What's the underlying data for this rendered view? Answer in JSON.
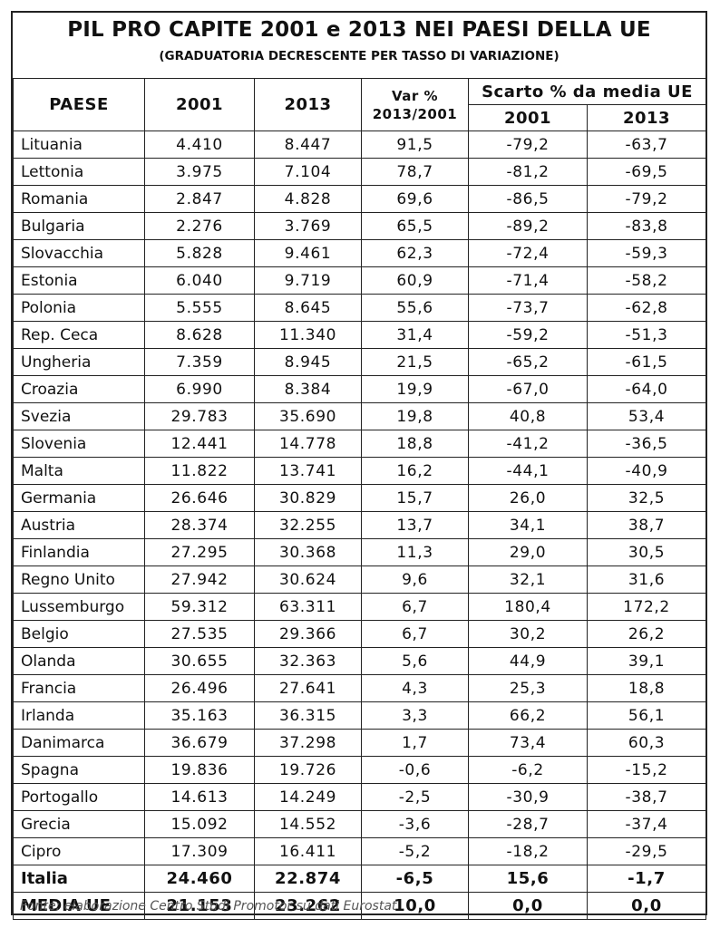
{
  "title": "PIL PRO CAPITE 2001 e 2013 NEI PAESI DELLA UE",
  "subtitle": "(GRADUATORIA DECRESCENTE PER TASSO DI VARIAZIONE)",
  "headers": {
    "paese": "PAESE",
    "y2001": "2001",
    "y2013": "2013",
    "var_line1": "Var %",
    "var_line2": "2013/2001",
    "scarto": "Scarto % da media UE",
    "scarto_2001": "2001",
    "scarto_2013": "2013"
  },
  "rows": [
    [
      "Lituania",
      "4.410",
      "8.447",
      "91,5",
      "-79,2",
      "-63,7"
    ],
    [
      "Lettonia",
      "3.975",
      "7.104",
      "78,7",
      "-81,2",
      "-69,5"
    ],
    [
      "Romania",
      "2.847",
      "4.828",
      "69,6",
      "-86,5",
      "-79,2"
    ],
    [
      "Bulgaria",
      "2.276",
      "3.769",
      "65,5",
      "-89,2",
      "-83,8"
    ],
    [
      "Slovacchia",
      "5.828",
      "9.461",
      "62,3",
      "-72,4",
      "-59,3"
    ],
    [
      "Estonia",
      "6.040",
      "9.719",
      "60,9",
      "-71,4",
      "-58,2"
    ],
    [
      "Polonia",
      "5.555",
      "8.645",
      "55,6",
      "-73,7",
      "-62,8"
    ],
    [
      "Rep. Ceca",
      "8.628",
      "11.340",
      "31,4",
      "-59,2",
      "-51,3"
    ],
    [
      "Ungheria",
      "7.359",
      "8.945",
      "21,5",
      "-65,2",
      "-61,5"
    ],
    [
      "Croazia",
      "6.990",
      "8.384",
      "19,9",
      "-67,0",
      "-64,0"
    ],
    [
      "Svezia",
      "29.783",
      "35.690",
      "19,8",
      "40,8",
      "53,4"
    ],
    [
      "Slovenia",
      "12.441",
      "14.778",
      "18,8",
      "-41,2",
      "-36,5"
    ],
    [
      "Malta",
      "11.822",
      "13.741",
      "16,2",
      "-44,1",
      "-40,9"
    ],
    [
      "Germania",
      "26.646",
      "30.829",
      "15,7",
      "26,0",
      "32,5"
    ],
    [
      "Austria",
      "28.374",
      "32.255",
      "13,7",
      "34,1",
      "38,7"
    ],
    [
      "Finlandia",
      "27.295",
      "30.368",
      "11,3",
      "29,0",
      "30,5"
    ],
    [
      "Regno Unito",
      "27.942",
      "30.624",
      "9,6",
      "32,1",
      "31,6"
    ],
    [
      "Lussemburgo",
      "59.312",
      "63.311",
      "6,7",
      "180,4",
      "172,2"
    ],
    [
      "Belgio",
      "27.535",
      "29.366",
      "6,7",
      "30,2",
      "26,2"
    ],
    [
      "Olanda",
      "30.655",
      "32.363",
      "5,6",
      "44,9",
      "39,1"
    ],
    [
      "Francia",
      "26.496",
      "27.641",
      "4,3",
      "25,3",
      "18,8"
    ],
    [
      "Irlanda",
      "35.163",
      "36.315",
      "3,3",
      "66,2",
      "56,1"
    ],
    [
      "Danimarca",
      "36.679",
      "37.298",
      "1,7",
      "73,4",
      "60,3"
    ],
    [
      "Spagna",
      "19.836",
      "19.726",
      "-0,6",
      "-6,2",
      "-15,2"
    ],
    [
      "Portogallo",
      "14.613",
      "14.249",
      "-2,5",
      "-30,9",
      "-38,7"
    ],
    [
      "Grecia",
      "15.092",
      "14.552",
      "-3,6",
      "-28,7",
      "-37,4"
    ],
    [
      "Cipro",
      "17.309",
      "16.411",
      "-5,2",
      "-18,2",
      "-29,5"
    ]
  ],
  "bold_rows": [
    [
      "Italia",
      "24.460",
      "22.874",
      "-6,5",
      "15,6",
      "-1,7"
    ],
    [
      "MEDIA UE",
      "21.153",
      "23.262",
      "10,0",
      "0,0",
      "0,0"
    ]
  ],
  "source": "Fonte: elaborazione Centro Studi Promotor su dati Eurostat"
}
